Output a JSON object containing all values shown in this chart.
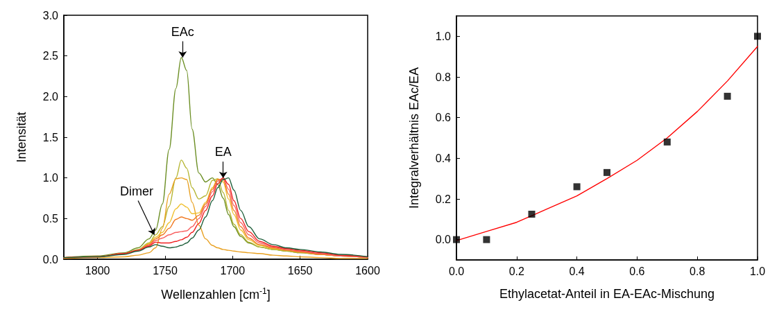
{
  "chart_data": [
    {
      "type": "line",
      "xlabel": "Wellenzahlen [cm$^{-1}$]",
      "ylabel": "Intensität",
      "x": [
        1825,
        1800,
        1780,
        1770,
        1762,
        1757,
        1752,
        1747,
        1742,
        1738,
        1734,
        1730,
        1725,
        1720,
        1715,
        1711,
        1707,
        1703,
        1699,
        1694,
        1688,
        1680,
        1670,
        1660,
        1650,
        1635,
        1620,
        1600
      ],
      "series": [
        {
          "color": "#6b8e23",
          "values": [
            0.02,
            0.04,
            0.08,
            0.14,
            0.25,
            0.36,
            0.68,
            1.35,
            2.1,
            2.48,
            2.32,
            1.6,
            1.06,
            0.95,
            1.0,
            0.92,
            0.75,
            0.55,
            0.4,
            0.28,
            0.2,
            0.15,
            0.12,
            0.1,
            0.08,
            0.06,
            0.04,
            0.02
          ]
        },
        {
          "color": "#b5b531",
          "values": [
            0.02,
            0.03,
            0.07,
            0.12,
            0.2,
            0.3,
            0.4,
            0.65,
            1.0,
            1.22,
            1.12,
            0.88,
            0.74,
            0.78,
            0.97,
            0.99,
            0.82,
            0.6,
            0.43,
            0.3,
            0.21,
            0.15,
            0.12,
            0.1,
            0.08,
            0.06,
            0.04,
            0.02
          ]
        },
        {
          "color": "#e8a020",
          "values": [
            0.01,
            0.02,
            0.03,
            0.05,
            0.08,
            0.14,
            0.38,
            0.8,
            0.99,
            1.0,
            0.98,
            0.7,
            0.42,
            0.25,
            0.17,
            0.14,
            0.12,
            0.11,
            0.1,
            0.09,
            0.08,
            0.07,
            0.05,
            0.04,
            0.03,
            0.02,
            0.01,
            0.01
          ]
        },
        {
          "color": "#f0c030",
          "values": [
            0.02,
            0.03,
            0.07,
            0.11,
            0.19,
            0.27,
            0.33,
            0.45,
            0.62,
            0.68,
            0.64,
            0.56,
            0.57,
            0.7,
            0.88,
            0.99,
            0.95,
            0.74,
            0.55,
            0.36,
            0.24,
            0.17,
            0.13,
            0.11,
            0.09,
            0.06,
            0.04,
            0.02
          ]
        },
        {
          "color": "#f07820",
          "values": [
            0.02,
            0.03,
            0.07,
            0.11,
            0.18,
            0.25,
            0.3,
            0.38,
            0.49,
            0.52,
            0.5,
            0.48,
            0.54,
            0.68,
            0.86,
            0.98,
            0.98,
            0.8,
            0.6,
            0.4,
            0.26,
            0.18,
            0.14,
            0.11,
            0.09,
            0.06,
            0.04,
            0.02
          ]
        },
        {
          "color": "#f86060",
          "values": [
            0.02,
            0.03,
            0.07,
            0.11,
            0.17,
            0.23,
            0.26,
            0.3,
            0.33,
            0.34,
            0.35,
            0.4,
            0.5,
            0.65,
            0.83,
            0.96,
            1.0,
            0.86,
            0.66,
            0.45,
            0.3,
            0.2,
            0.15,
            0.12,
            0.1,
            0.07,
            0.04,
            0.02
          ]
        },
        {
          "color": "#f02020",
          "values": [
            0.02,
            0.03,
            0.07,
            0.11,
            0.16,
            0.21,
            0.2,
            0.2,
            0.22,
            0.24,
            0.27,
            0.33,
            0.44,
            0.6,
            0.78,
            0.93,
            1.0,
            0.92,
            0.72,
            0.5,
            0.34,
            0.22,
            0.16,
            0.13,
            0.11,
            0.08,
            0.05,
            0.03
          ]
        },
        {
          "color": "#1e5e3a",
          "values": [
            0.02,
            0.03,
            0.06,
            0.1,
            0.15,
            0.18,
            0.16,
            0.14,
            0.15,
            0.17,
            0.2,
            0.26,
            0.36,
            0.52,
            0.72,
            0.88,
            0.98,
            1.0,
            0.85,
            0.6,
            0.4,
            0.25,
            0.18,
            0.14,
            0.12,
            0.09,
            0.06,
            0.03
          ]
        }
      ],
      "xlim": [
        1825,
        1600
      ],
      "xticks": [
        1800,
        1750,
        1700,
        1650,
        1600
      ],
      "ylim": [
        0,
        3.0
      ],
      "yticks": [
        {
          "value": 0,
          "label": "0.0"
        },
        {
          "value": 0.5,
          "label": "0.5"
        },
        {
          "value": 1,
          "label": "1.0"
        },
        {
          "value": 1.5,
          "label": "1.5"
        },
        {
          "value": 2,
          "label": "2.0"
        },
        {
          "value": 2.5,
          "label": "2.5"
        },
        {
          "value": 3,
          "label": "3.0"
        }
      ],
      "annotations": [
        {
          "text": "EAc",
          "x": 1737,
          "y": 2.48
        },
        {
          "text": "EA",
          "x": 1707,
          "y": 1.0
        },
        {
          "text": "Dimer",
          "x": 1758,
          "y": 0.3
        }
      ],
      "grid": false,
      "marker": "none",
      "line_style": "solid"
    },
    {
      "type": "scatter",
      "xlabel": "Ethylacetat-Anteil in EA-EAc-Mischung",
      "ylabel": "Integralverhältnis EAc/EA",
      "series": [
        {
          "color": "#000000",
          "marker": "square",
          "x": [
            0,
            0.1,
            0.25,
            0.4,
            0.5,
            0.7,
            0.9,
            1.0
          ],
          "values": [
            0,
            0,
            0.125,
            0.26,
            0.33,
            0.48,
            0.705,
            1.0
          ]
        },
        {
          "type": "line",
          "color": "#ff0000",
          "marker": "none",
          "x": [
            0,
            0.1,
            0.2,
            0.3,
            0.4,
            0.5,
            0.6,
            0.7,
            0.8,
            0.9,
            1.0
          ],
          "values": [
            -0.005,
            0.04,
            0.085,
            0.15,
            0.215,
            0.3,
            0.39,
            0.5,
            0.63,
            0.78,
            0.95
          ]
        }
      ],
      "xlim": [
        0,
        1.0
      ],
      "xticks": [
        {
          "value": 0,
          "label": "0.0"
        },
        {
          "value": 0.2,
          "label": "0.2"
        },
        {
          "value": 0.4,
          "label": "0.4"
        },
        {
          "value": 0.6,
          "label": "0.6"
        },
        {
          "value": 0.8,
          "label": "0.8"
        },
        {
          "value": 1,
          "label": "1.0"
        }
      ],
      "ylim": [
        -0.1,
        1.1
      ],
      "yticks": [
        {
          "value": 0,
          "label": "0.0"
        },
        {
          "value": 0.2,
          "label": "0.2"
        },
        {
          "value": 0.4,
          "label": "0.4"
        },
        {
          "value": 0.6,
          "label": "0.6"
        },
        {
          "value": 0.8,
          "label": "0.8"
        },
        {
          "value": 1,
          "label": "1.0"
        }
      ],
      "grid": false,
      "line_style": "solid"
    }
  ]
}
